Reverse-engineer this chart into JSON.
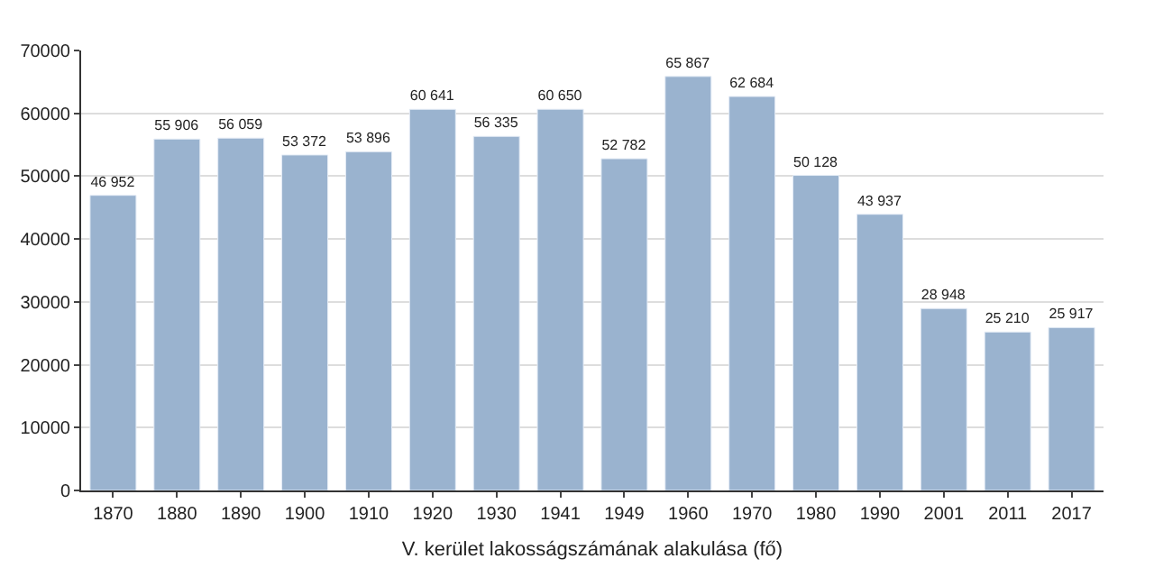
{
  "chart_data": {
    "type": "bar",
    "xlabel": "V. kerület lakosságszámának alakulása (fő)",
    "categories": [
      "1870",
      "1880",
      "1890",
      "1900",
      "1910",
      "1920",
      "1930",
      "1941",
      "1949",
      "1960",
      "1970",
      "1980",
      "1990",
      "2001",
      "2011",
      "2017"
    ],
    "values": [
      46952,
      55906,
      56059,
      53372,
      53896,
      60641,
      56335,
      60650,
      52782,
      65867,
      62684,
      50128,
      43937,
      28948,
      25210,
      25917
    ],
    "value_labels": [
      "46 952",
      "55 906",
      "56 059",
      "53 372",
      "53 896",
      "60 641",
      "56 335",
      "60 650",
      "52 782",
      "65 867",
      "62 684",
      "50 128",
      "43 937",
      "28 948",
      "25 210",
      "25 917"
    ],
    "color": "#9ab3cf",
    "ylim": [
      0,
      70000
    ],
    "yticks": [
      0,
      10000,
      20000,
      30000,
      40000,
      50000,
      60000,
      70000
    ],
    "grid": "y"
  }
}
